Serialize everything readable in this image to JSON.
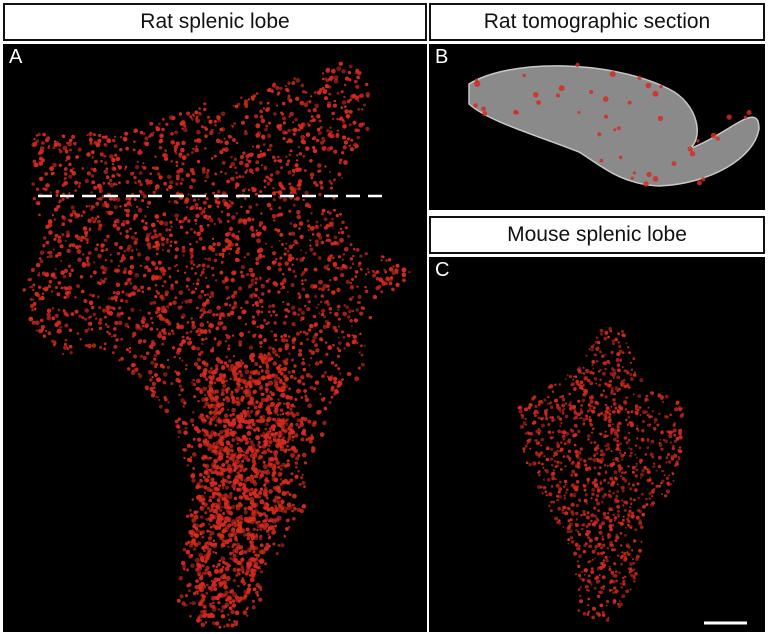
{
  "panels": {
    "a": {
      "header": "Rat splenic lobe",
      "letter": "A"
    },
    "b": {
      "header": "Rat tomographic section",
      "letter": "B"
    },
    "c": {
      "header": "Mouse splenic lobe",
      "letter": "C"
    }
  },
  "colors": {
    "background": "#000000",
    "signal": "#d42b1e",
    "section_tissue": "#8a8a8a",
    "dashed_line": "#ffffff",
    "scale_bar": "#ffffff"
  }
}
